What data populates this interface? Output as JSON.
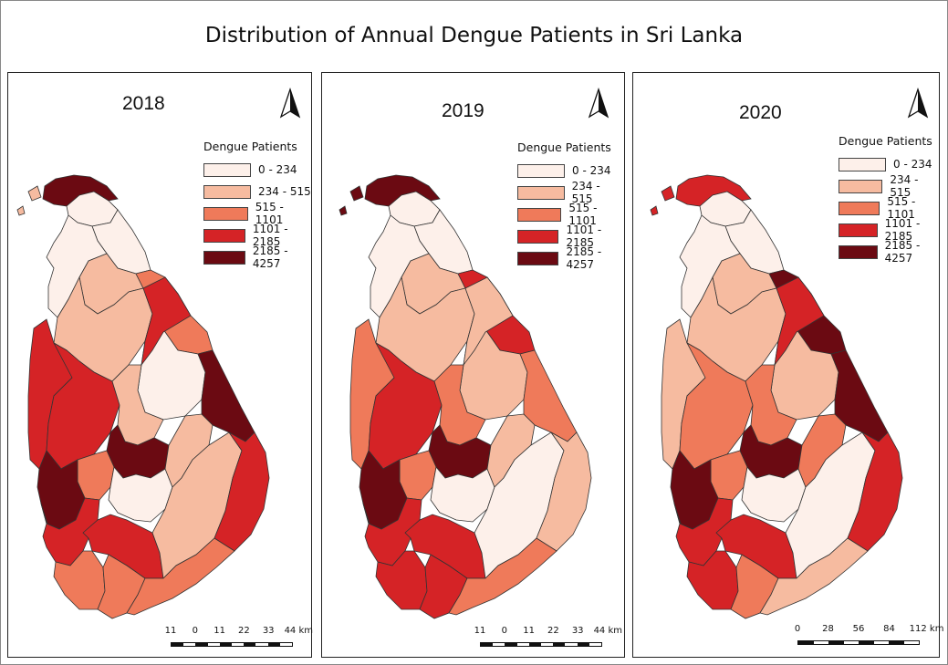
{
  "title": "Distribution of Annual Dengue Patients in Sri Lanka",
  "legend": {
    "title": "Dengue Patients",
    "classes": [
      {
        "label": "0 - 234",
        "color": "#fdf0ea"
      },
      {
        "label": "234 - 515",
        "color": "#f6bba0"
      },
      {
        "label": "515 - 1101",
        "color": "#ef7a5a"
      },
      {
        "label": "1101 - 2185",
        "color": "#d52326"
      },
      {
        "label": "2185 - 4257",
        "color": "#6b0a12"
      }
    ]
  },
  "panels": [
    {
      "year": "2018",
      "scale": [
        "11",
        "0",
        "11",
        "22",
        "33",
        "44 km"
      ]
    },
    {
      "year": "2019",
      "scale": [
        "11",
        "0",
        "11",
        "22",
        "33",
        "44 km"
      ]
    },
    {
      "year": "2020",
      "scale": [
        "0",
        "28",
        "56",
        "84",
        "112 km"
      ]
    }
  ],
  "district_classes": {
    "2018": {
      "jaffna": 4,
      "north_islands": 1,
      "kilinochchi": 0,
      "mullaitivu": 0,
      "mannar": 0,
      "vavuniya": 1,
      "trincomalee": 2,
      "anuradhapura": 1,
      "polonnaruwa": 0,
      "batticaloa": 4,
      "puttalam": 3,
      "kurunegala": 3,
      "matale": 1,
      "kandy": 4,
      "kegalle": 2,
      "colombo": 4,
      "gampaha": 3,
      "kalutara": 3,
      "ratnapura": 3,
      "nuwara_eliya": 0,
      "badulla": 1,
      "monaragala": 1,
      "ampara": 3,
      "galle": 2,
      "matara": 2,
      "hambantota": 2,
      "north_central_east": 3
    },
    "2019": {
      "jaffna": 4,
      "north_islands": 4,
      "kilinochchi": 0,
      "mullaitivu": 0,
      "mannar": 0,
      "vavuniya": 1,
      "trincomalee": 3,
      "anuradhapura": 1,
      "polonnaruwa": 1,
      "batticaloa": 2,
      "puttalam": 2,
      "kurunegala": 3,
      "matale": 2,
      "kandy": 4,
      "kegalle": 2,
      "colombo": 4,
      "gampaha": 4,
      "kalutara": 3,
      "ratnapura": 3,
      "nuwara_eliya": 0,
      "badulla": 1,
      "monaragala": 0,
      "ampara": 1,
      "galle": 3,
      "matara": 3,
      "hambantota": 2,
      "north_central_east": 1
    },
    "2020": {
      "jaffna": 3,
      "north_islands": 3,
      "kilinochchi": 0,
      "mullaitivu": 0,
      "mannar": 0,
      "vavuniya": 1,
      "trincomalee": 4,
      "anuradhapura": 1,
      "polonnaruwa": 1,
      "batticaloa": 4,
      "puttalam": 1,
      "kurunegala": 2,
      "matale": 2,
      "kandy": 4,
      "kegalle": 2,
      "colombo": 4,
      "gampaha": 4,
      "kalutara": 3,
      "ratnapura": 3,
      "nuwara_eliya": 0,
      "badulla": 2,
      "monaragala": 0,
      "ampara": 3,
      "galle": 3,
      "matara": 2,
      "hambantota": 1,
      "north_central_east": 3
    }
  }
}
